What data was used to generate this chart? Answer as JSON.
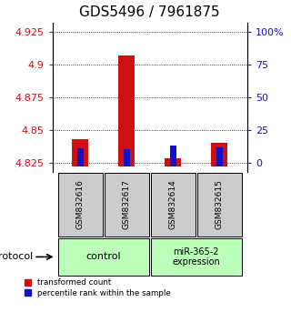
{
  "title": "GDS5496 / 7961875",
  "samples": [
    "GSM832616",
    "GSM832617",
    "GSM832614",
    "GSM832615"
  ],
  "group_labels": [
    "control",
    "miR-365-2\nexpression"
  ],
  "red_values": [
    4.843,
    4.907,
    4.828,
    4.84
  ],
  "blue_values": [
    4.836,
    4.835,
    4.838,
    4.837
  ],
  "bar_base": 4.822,
  "ylim_min": 4.818,
  "ylim_max": 4.932,
  "yticks_left": [
    4.825,
    4.85,
    4.875,
    4.9,
    4.925
  ],
  "right_axis_labels": [
    "0",
    "25",
    "50",
    "75",
    "100%"
  ],
  "red_color": "#cc1111",
  "blue_color": "#1111cc",
  "legend_red": "transformed count",
  "legend_blue": "percentile rank within the sample",
  "protocol_label": "protocol",
  "group_bg_color": "#bbffbb",
  "sample_bg_color": "#cccccc",
  "title_fontsize": 11
}
